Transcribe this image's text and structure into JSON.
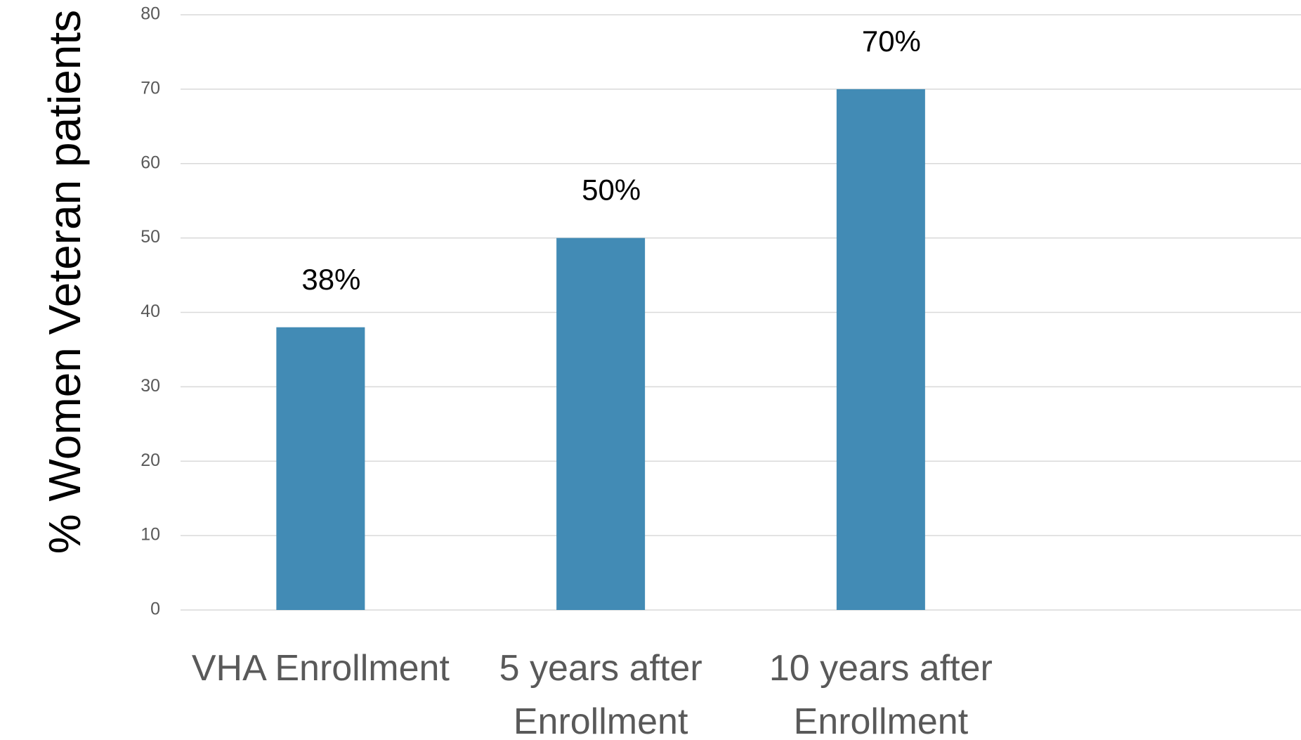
{
  "chart_data": {
    "type": "bar",
    "y_label": "% Women Veteran patients",
    "categories": [
      "VHA Enrollment",
      "5 years after Enrollment",
      "10 years after Enrollment",
      null
    ],
    "values": [
      38,
      50,
      70,
      null
    ],
    "value_labels": [
      "38%",
      "50%",
      "70%",
      null
    ],
    "color": "#428bb5",
    "ylim": [
      0,
      80
    ],
    "yticks": [
      0,
      10,
      20,
      30,
      40,
      50,
      60,
      70,
      80
    ],
    "grid": true
  }
}
